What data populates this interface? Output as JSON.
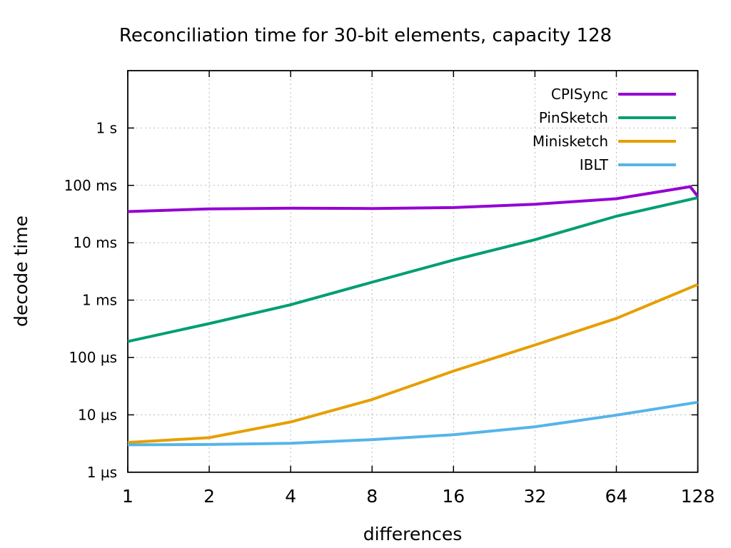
{
  "page": {
    "background": "#ffffff"
  },
  "chart_data": {
    "type": "line",
    "title": "Reconciliation time for 30-bit elements, capacity 128",
    "xlabel": "differences",
    "ylabel": "decode time",
    "x_scale": "log2",
    "y_scale": "log10",
    "xlim": [
      1,
      128
    ],
    "ylim_us": [
      1,
      10000000
    ],
    "grid": true,
    "legend_position": "top-right-inside",
    "x_ticks": [
      {
        "label": "1",
        "value": 1
      },
      {
        "label": "2",
        "value": 2
      },
      {
        "label": "4",
        "value": 4
      },
      {
        "label": "8",
        "value": 8
      },
      {
        "label": "16",
        "value": 16
      },
      {
        "label": "32",
        "value": 32
      },
      {
        "label": "64",
        "value": 64
      },
      {
        "label": "128",
        "value": 128
      }
    ],
    "y_ticks": [
      {
        "label": "1 µs",
        "us": 1
      },
      {
        "label": "10 µs",
        "us": 10
      },
      {
        "label": "100 µs",
        "us": 100
      },
      {
        "label": "1 ms",
        "us": 1000
      },
      {
        "label": "10 ms",
        "us": 10000
      },
      {
        "label": "100 ms",
        "us": 100000
      },
      {
        "label": "1 s",
        "us": 1000000
      }
    ],
    "series": [
      {
        "name": "CPISync",
        "color": "#9400d3",
        "points_diff_us": [
          [
            1,
            35000
          ],
          [
            2,
            39000
          ],
          [
            4,
            40000
          ],
          [
            8,
            39500
          ],
          [
            16,
            41000
          ],
          [
            32,
            47000
          ],
          [
            64,
            58500
          ],
          [
            96,
            80000
          ],
          [
            120,
            95000
          ],
          [
            128,
            64000
          ]
        ]
      },
      {
        "name": "PinSketch",
        "color": "#009e73",
        "points_diff_us": [
          [
            1,
            190
          ],
          [
            2,
            390
          ],
          [
            4,
            830
          ],
          [
            8,
            2050
          ],
          [
            16,
            5000
          ],
          [
            32,
            11300
          ],
          [
            64,
            29000
          ],
          [
            128,
            61000
          ]
        ]
      },
      {
        "name": "Minisketch",
        "color": "#e69f00",
        "points_diff_us": [
          [
            1,
            3.3
          ],
          [
            2,
            4.0
          ],
          [
            4,
            7.5
          ],
          [
            8,
            18.5
          ],
          [
            16,
            58
          ],
          [
            32,
            165
          ],
          [
            64,
            480
          ],
          [
            128,
            1870
          ]
        ]
      },
      {
        "name": "IBLT",
        "color": "#56b4e9",
        "points_diff_us": [
          [
            1,
            3.0
          ],
          [
            2,
            3.05
          ],
          [
            4,
            3.2
          ],
          [
            8,
            3.7
          ],
          [
            16,
            4.5
          ],
          [
            32,
            6.2
          ],
          [
            64,
            9.9
          ],
          [
            128,
            16.6
          ]
        ]
      }
    ]
  }
}
